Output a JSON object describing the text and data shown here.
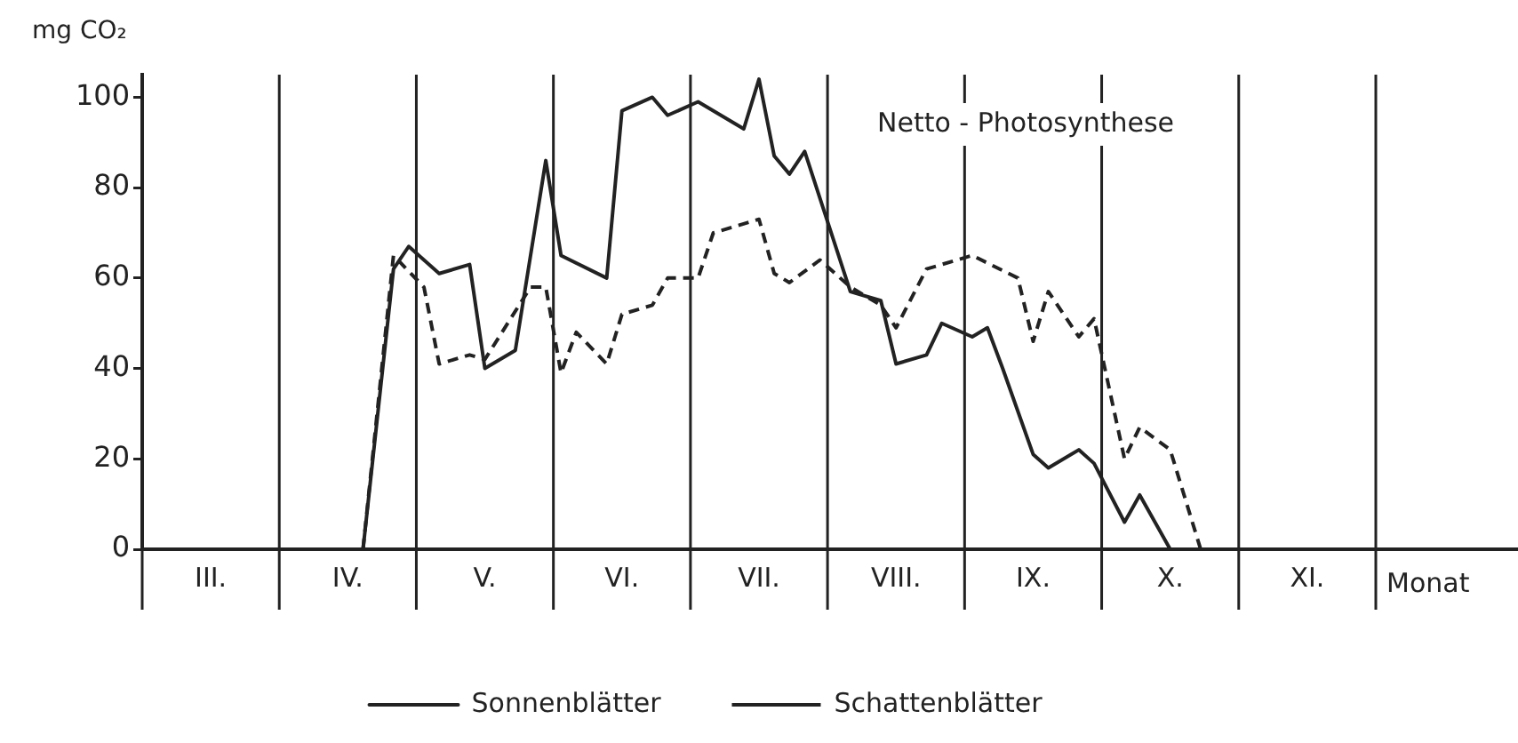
{
  "chart_data": {
    "type": "line",
    "title": "Netto - Photosynthese",
    "ylabel": "mg CO₂",
    "xlabel": "Monat",
    "categories": [
      null,
      null,
      null,
      null,
      "III.",
      null,
      null,
      null,
      null,
      null,
      null,
      null,
      null,
      "IV.",
      null,
      null,
      null,
      null,
      null,
      null,
      null,
      null,
      "V.",
      null,
      null,
      null,
      null,
      null,
      null,
      null,
      null,
      "VI.",
      null,
      null,
      null,
      null,
      null,
      null,
      null,
      null,
      "VII.",
      null,
      null,
      null,
      null,
      null,
      null,
      null,
      null,
      "VIII.",
      null,
      null,
      null,
      null,
      null,
      null,
      null,
      null,
      "IX.",
      null,
      null,
      null,
      null,
      null,
      null,
      null,
      null,
      "X.",
      null,
      null,
      null,
      null,
      null,
      null,
      null,
      null,
      "XI.",
      null,
      null,
      null,
      null
    ],
    "ylim": [
      0,
      105
    ],
    "yticks": [
      0,
      20,
      40,
      60,
      80,
      100
    ],
    "grid": "x",
    "legend": "bottom",
    "marker": "none",
    "series": [
      {
        "name": "Sonnenblätter",
        "color": "#222222",
        "line_style": "solid",
        "values": [
          null,
          null,
          null,
          null,
          null,
          null,
          null,
          null,
          null,
          null,
          null,
          null,
          null,
          null,
          0,
          null,
          62,
          67,
          null,
          61,
          null,
          63,
          40,
          null,
          44,
          null,
          86,
          65,
          null,
          null,
          60,
          97,
          null,
          100,
          96,
          null,
          99,
          null,
          null,
          93,
          104,
          87,
          83,
          88,
          null,
          null,
          57,
          null,
          55,
          41,
          null,
          43,
          50,
          null,
          47,
          49,
          40,
          null,
          21,
          18,
          null,
          22,
          19,
          null,
          6,
          12,
          null,
          0,
          null,
          null,
          null,
          null,
          null,
          null,
          null,
          null,
          null,
          null,
          null,
          null,
          null
        ]
      },
      {
        "name": "Schattenblätter",
        "color": "#222222",
        "line_style": "dashed",
        "values": [
          null,
          null,
          null,
          null,
          null,
          null,
          null,
          null,
          null,
          null,
          null,
          null,
          null,
          null,
          0,
          null,
          65,
          null,
          58,
          41,
          null,
          43,
          42,
          null,
          null,
          58,
          58,
          39,
          48,
          null,
          41,
          52,
          null,
          54,
          60,
          null,
          60,
          70,
          null,
          null,
          73,
          61,
          59,
          null,
          64,
          null,
          58,
          null,
          54,
          49,
          null,
          62,
          null,
          null,
          65,
          null,
          null,
          60,
          46,
          57,
          null,
          47,
          51,
          null,
          20,
          27,
          null,
          22,
          null,
          0,
          null,
          null,
          null,
          null,
          null,
          null,
          null,
          null,
          null,
          null,
          null
        ]
      }
    ]
  }
}
